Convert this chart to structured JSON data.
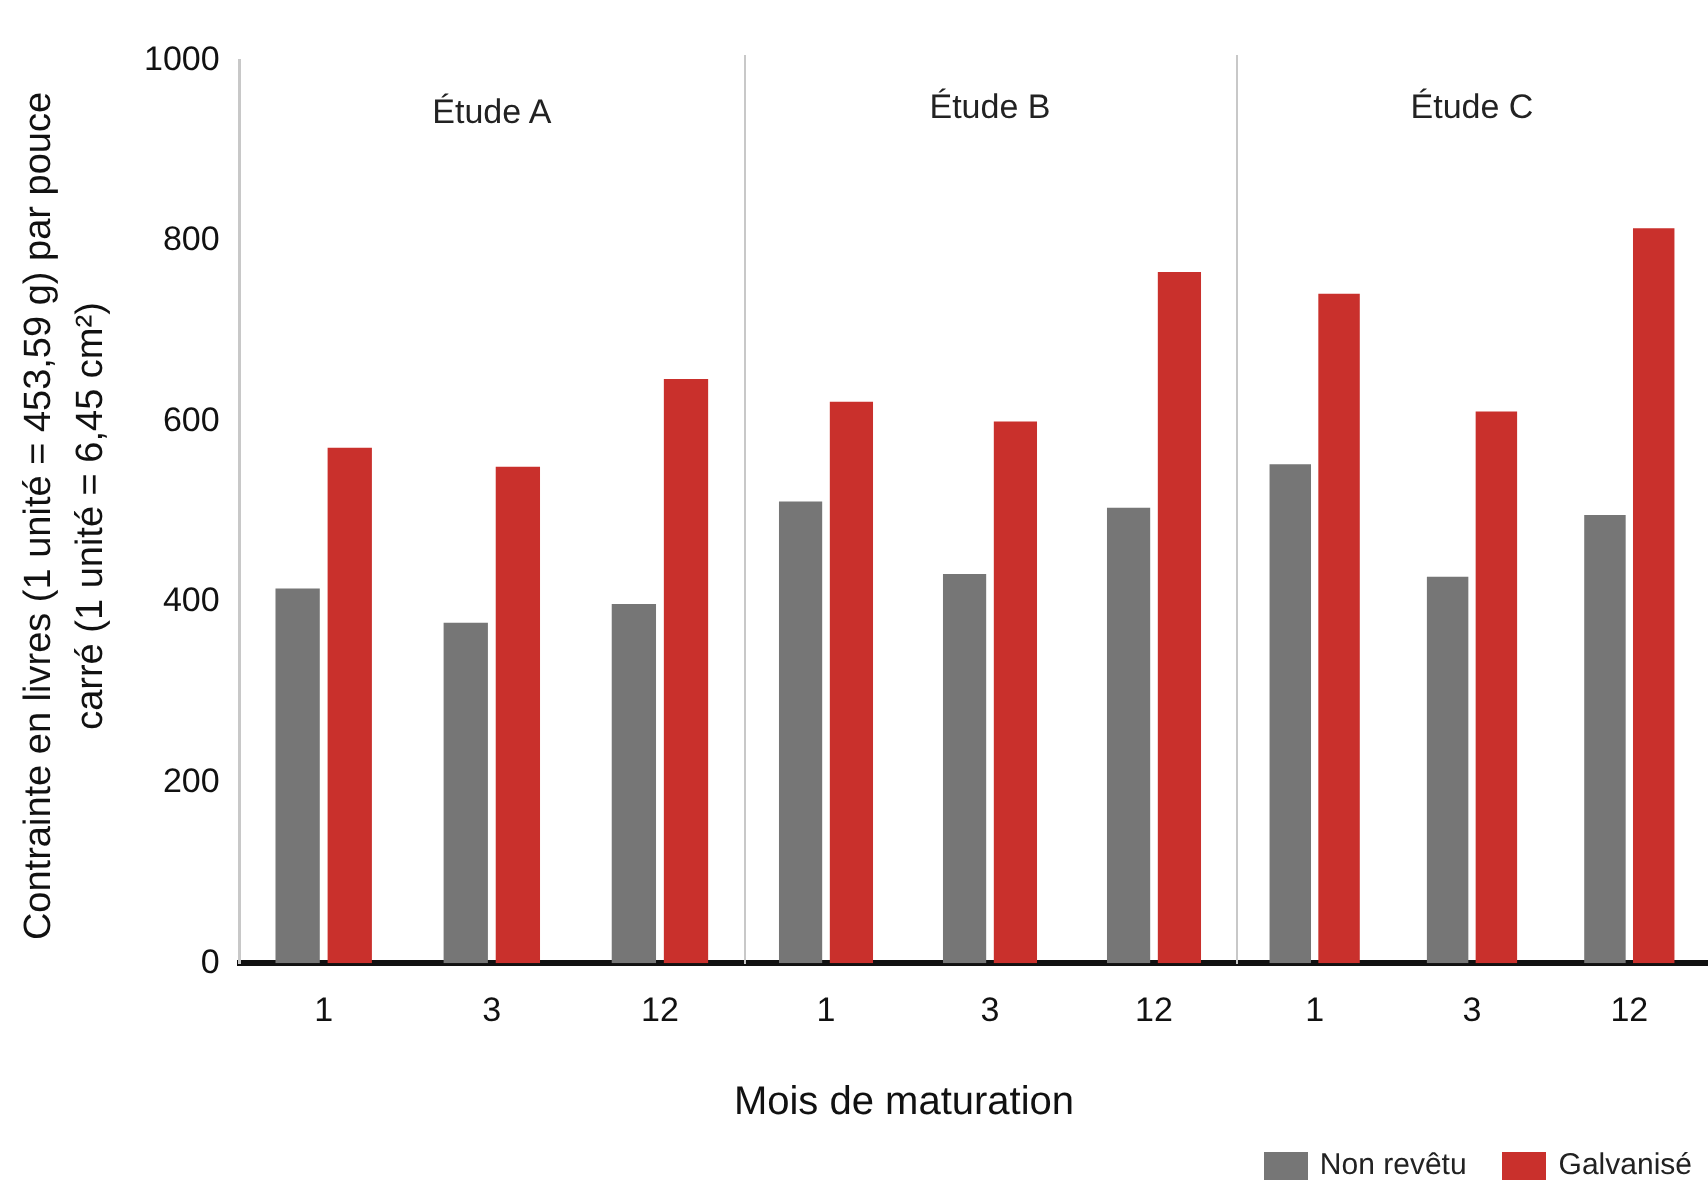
{
  "chart_data": [
    {
      "type": "bar",
      "title": "Étude A",
      "ylabel": "Contrainte en livres (1 unité = 453,59 g) par pouce carré (1 unité = 6,45 cm²)",
      "categories": [
        "1",
        "3",
        "12"
      ],
      "ylim": [
        0,
        1000
      ],
      "yticks": [
        0,
        200,
        400,
        600,
        800,
        1000
      ],
      "grid": false,
      "series": [
        {
          "color": "#767676",
          "values": [
            415,
            377,
            398
          ]
        },
        {
          "color": "#c9302c",
          "values": [
            571,
            550,
            647
          ]
        }
      ]
    },
    {
      "type": "bar",
      "title": "Étude B",
      "xlabel": "Mois de maturation",
      "categories": [
        "1",
        "3",
        "12"
      ],
      "ylim": [
        0,
        1000
      ],
      "yticks": [
        0,
        200,
        400,
        600,
        800,
        1000
      ],
      "tick_labels": "x",
      "grid": false,
      "series": [
        {
          "color": "#767676",
          "values": [
            509,
            429,
            502
          ]
        },
        {
          "color": "#c9302c",
          "values": [
            619,
            597,
            762
          ]
        }
      ]
    },
    {
      "type": "bar",
      "title": "Étude C",
      "categories": [
        "1",
        "3",
        "12"
      ],
      "ylim": [
        0,
        1000
      ],
      "yticks": [
        0,
        200,
        400,
        600,
        800,
        1000
      ],
      "tick_labels": "x",
      "grid": false,
      "legend": "bottom right",
      "series": [
        {
          "name": "Non revêtu",
          "color": "#767676",
          "values": [
            550,
            426,
            494
          ]
        },
        {
          "name": "Galvanisé",
          "color": "#c9302c",
          "values": [
            738,
            608,
            810
          ]
        }
      ]
    }
  ]
}
